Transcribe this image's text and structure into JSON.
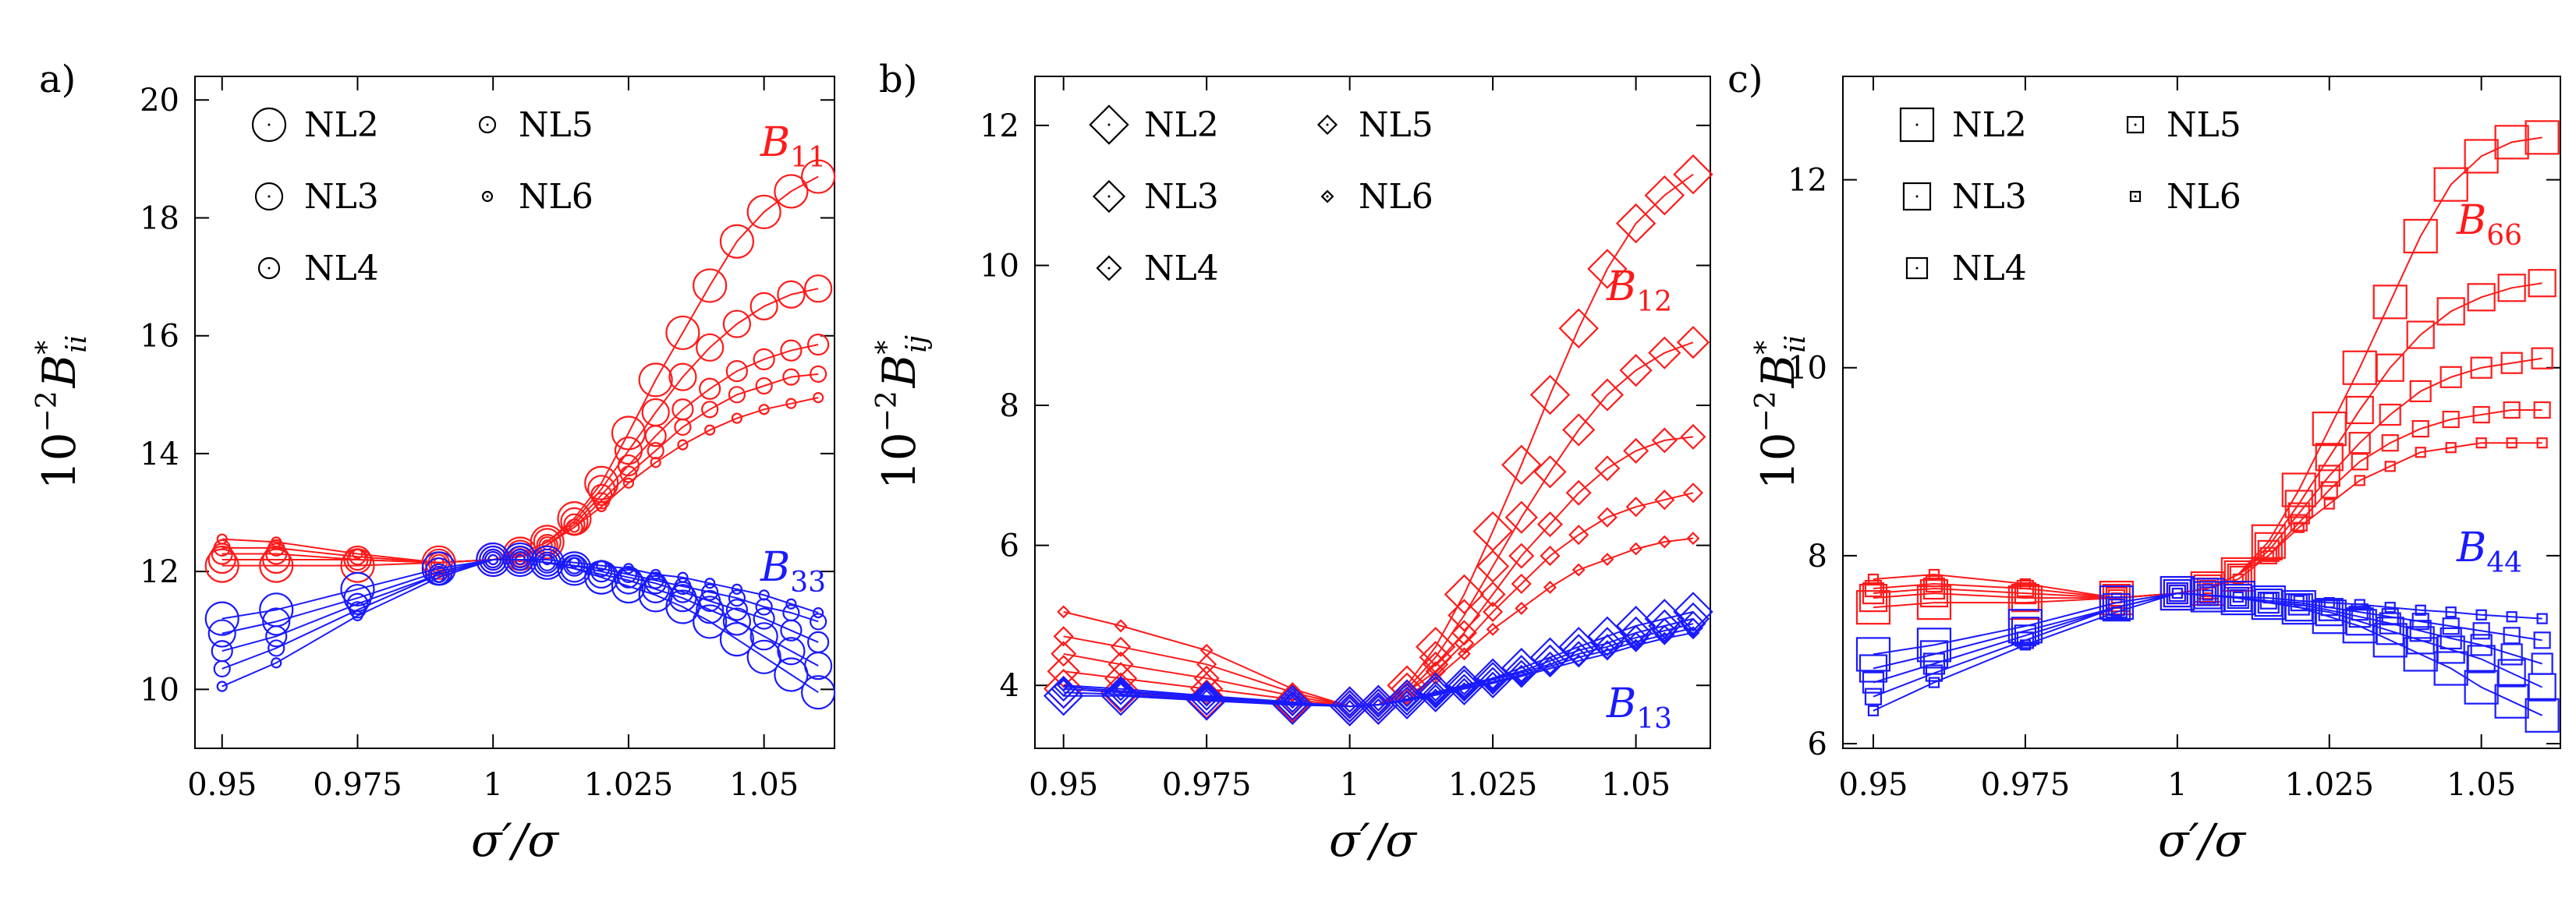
{
  "colors": {
    "red": "#ff1a1a",
    "blue": "#1a1aff",
    "axis": "#000000"
  },
  "chart_data": [
    {
      "type": "line",
      "panel_label": "a)",
      "xlabel_main": "σ′/σ",
      "ylabel": {
        "prefix": "10",
        "exp": "−2",
        "letter": "B",
        "sup": "*",
        "sub": "ii"
      },
      "xlim": [
        0.945,
        1.063
      ],
      "ylim": [
        9.0,
        20.4
      ],
      "xticks": [
        0.95,
        0.975,
        1,
        1.025,
        1.05
      ],
      "xtick_labels": [
        "0.95",
        "0.975",
        "1",
        "1.025",
        "1.05"
      ],
      "yticks": [
        10,
        12,
        14,
        16,
        18,
        20
      ],
      "ytick_labels": [
        "10",
        "12",
        "14",
        "16",
        "18",
        "20"
      ],
      "marker": "circle",
      "x": [
        0.95,
        0.96,
        0.975,
        0.99,
        1.0,
        1.005,
        1.01,
        1.015,
        1.02,
        1.025,
        1.03,
        1.035,
        1.04,
        1.045,
        1.05,
        1.055,
        1.06
      ],
      "legend": [
        "NL2",
        "NL3",
        "NL4",
        "NL5",
        "NL6"
      ],
      "annotations": [
        {
          "base": "B",
          "sub": "11",
          "color": "red"
        },
        {
          "base": "B",
          "sub": "33",
          "color": "blue"
        }
      ],
      "series": [
        {
          "name": "B11 NL2",
          "color": "red",
          "size": 5,
          "values": [
            12.1,
            12.1,
            12.1,
            12.15,
            12.2,
            12.3,
            12.5,
            12.9,
            13.5,
            14.35,
            15.25,
            16.05,
            16.85,
            17.6,
            18.1,
            18.45,
            18.7
          ]
        },
        {
          "name": "B11 NL3",
          "color": "red",
          "size": 4,
          "values": [
            12.2,
            12.2,
            12.2,
            12.15,
            12.2,
            12.3,
            12.5,
            12.85,
            13.4,
            14.05,
            14.7,
            15.3,
            15.8,
            16.2,
            16.5,
            16.7,
            16.8
          ]
        },
        {
          "name": "B11 NL4",
          "color": "red",
          "size": 3,
          "values": [
            12.3,
            12.3,
            12.2,
            12.15,
            12.2,
            12.25,
            12.45,
            12.8,
            13.3,
            13.8,
            14.3,
            14.75,
            15.1,
            15.4,
            15.6,
            15.75,
            15.85
          ]
        },
        {
          "name": "B11 NL5",
          "color": "red",
          "size": 2,
          "values": [
            12.4,
            12.4,
            12.25,
            12.15,
            12.2,
            12.25,
            12.45,
            12.75,
            13.2,
            13.65,
            14.05,
            14.45,
            14.75,
            15.0,
            15.15,
            15.3,
            15.35
          ]
        },
        {
          "name": "B11 NL6",
          "color": "red",
          "size": 1,
          "values": [
            12.55,
            12.5,
            12.3,
            12.15,
            12.2,
            12.25,
            12.45,
            12.75,
            13.1,
            13.5,
            13.85,
            14.15,
            14.4,
            14.6,
            14.75,
            14.85,
            14.95
          ]
        },
        {
          "name": "B33 NL2",
          "color": "blue",
          "size": 5,
          "values": [
            11.2,
            11.35,
            11.7,
            12.05,
            12.2,
            12.2,
            12.15,
            12.05,
            11.9,
            11.75,
            11.6,
            11.4,
            11.15,
            10.85,
            10.55,
            10.25,
            9.95
          ]
        },
        {
          "name": "B33 NL3",
          "color": "blue",
          "size": 4,
          "values": [
            10.95,
            11.15,
            11.55,
            12.0,
            12.2,
            12.2,
            12.15,
            12.05,
            11.95,
            11.85,
            11.7,
            11.55,
            11.35,
            11.15,
            10.9,
            10.65,
            10.4
          ]
        },
        {
          "name": "B33 NL4",
          "color": "blue",
          "size": 3,
          "values": [
            10.65,
            10.9,
            11.45,
            11.95,
            12.2,
            12.2,
            12.15,
            12.1,
            12.0,
            11.9,
            11.8,
            11.65,
            11.5,
            11.35,
            11.2,
            11.0,
            10.8
          ]
        },
        {
          "name": "B33 NL5",
          "color": "blue",
          "size": 2,
          "values": [
            10.35,
            10.7,
            11.35,
            11.95,
            12.2,
            12.2,
            12.15,
            12.1,
            12.05,
            11.95,
            11.85,
            11.75,
            11.65,
            11.55,
            11.4,
            11.3,
            11.15
          ]
        },
        {
          "name": "B33 NL6",
          "color": "blue",
          "size": 1,
          "values": [
            10.05,
            10.45,
            11.25,
            11.9,
            12.2,
            12.2,
            12.2,
            12.15,
            12.1,
            12.05,
            11.95,
            11.9,
            11.8,
            11.7,
            11.6,
            11.45,
            11.3
          ]
        }
      ]
    },
    {
      "type": "line",
      "panel_label": "b)",
      "xlabel_main": "σ′/σ",
      "ylabel": {
        "prefix": "10",
        "exp": "−2",
        "letter": "B",
        "sup": "*",
        "sub": "ij"
      },
      "xlim": [
        0.945,
        1.063
      ],
      "ylim": [
        3.1,
        12.7
      ],
      "xticks": [
        0.95,
        0.975,
        1,
        1.025,
        1.05
      ],
      "xtick_labels": [
        "0.95",
        "0.975",
        "1",
        "1.025",
        "1.05"
      ],
      "yticks": [
        4,
        6,
        8,
        10,
        12
      ],
      "ytick_labels": [
        "4",
        "6",
        "8",
        "10",
        "12"
      ],
      "marker": "diamond",
      "x": [
        0.95,
        0.96,
        0.975,
        0.99,
        1.0,
        1.005,
        1.01,
        1.015,
        1.02,
        1.025,
        1.03,
        1.035,
        1.04,
        1.045,
        1.05,
        1.055,
        1.06
      ],
      "legend": [
        "NL2",
        "NL3",
        "NL4",
        "NL5",
        "NL6"
      ],
      "annotations": [
        {
          "base": "B",
          "sub": "12",
          "color": "red"
        },
        {
          "base": "B",
          "sub": "13",
          "color": "blue"
        }
      ],
      "series": [
        {
          "name": "B12 NL2",
          "color": "red",
          "size": 5,
          "values": [
            3.95,
            3.9,
            3.8,
            3.75,
            3.7,
            3.72,
            4.0,
            4.55,
            5.3,
            6.2,
            7.15,
            8.15,
            9.1,
            9.95,
            10.6,
            11.0,
            11.3
          ]
        },
        {
          "name": "B12 NL3",
          "color": "red",
          "size": 4,
          "values": [
            4.2,
            4.1,
            3.95,
            3.8,
            3.7,
            3.72,
            3.95,
            4.4,
            5.0,
            5.7,
            6.4,
            7.05,
            7.65,
            8.15,
            8.5,
            8.75,
            8.9
          ]
        },
        {
          "name": "B12 NL4",
          "color": "red",
          "size": 3,
          "values": [
            4.45,
            4.3,
            4.1,
            3.85,
            3.7,
            3.72,
            3.9,
            4.3,
            4.75,
            5.3,
            5.85,
            6.3,
            6.75,
            7.1,
            7.35,
            7.5,
            7.55
          ]
        },
        {
          "name": "B12 NL5",
          "color": "red",
          "size": 2,
          "values": [
            4.7,
            4.55,
            4.3,
            3.9,
            3.7,
            3.72,
            3.9,
            4.2,
            4.6,
            5.05,
            5.45,
            5.85,
            6.15,
            6.4,
            6.55,
            6.65,
            6.75
          ]
        },
        {
          "name": "B12 NL6",
          "color": "red",
          "size": 1,
          "values": [
            5.05,
            4.85,
            4.5,
            3.95,
            3.7,
            3.72,
            3.85,
            4.1,
            4.45,
            4.8,
            5.1,
            5.4,
            5.65,
            5.8,
            5.95,
            6.05,
            6.1
          ]
        },
        {
          "name": "B13 NL2",
          "color": "blue",
          "size": 5,
          "values": [
            3.85,
            3.85,
            3.78,
            3.72,
            3.7,
            3.72,
            3.8,
            3.9,
            4.0,
            4.1,
            4.25,
            4.4,
            4.55,
            4.7,
            4.85,
            4.95,
            5.05
          ]
        },
        {
          "name": "B13 NL3",
          "color": "blue",
          "size": 4,
          "values": [
            3.9,
            3.87,
            3.8,
            3.73,
            3.7,
            3.72,
            3.8,
            3.9,
            4.0,
            4.1,
            4.2,
            4.35,
            4.5,
            4.6,
            4.75,
            4.85,
            4.95
          ]
        },
        {
          "name": "B13 NL4",
          "color": "blue",
          "size": 3,
          "values": [
            3.95,
            3.9,
            3.82,
            3.74,
            3.7,
            3.72,
            3.8,
            3.88,
            3.98,
            4.08,
            4.18,
            4.3,
            4.45,
            4.55,
            4.68,
            4.78,
            4.88
          ]
        },
        {
          "name": "B13 NL5",
          "color": "blue",
          "size": 2,
          "values": [
            3.98,
            3.92,
            3.84,
            3.75,
            3.7,
            3.72,
            3.78,
            3.87,
            3.96,
            4.05,
            4.15,
            4.27,
            4.4,
            4.5,
            4.62,
            4.72,
            4.82
          ]
        },
        {
          "name": "B13 NL6",
          "color": "blue",
          "size": 1,
          "values": [
            4.0,
            3.95,
            3.85,
            3.76,
            3.7,
            3.72,
            3.78,
            3.86,
            3.95,
            4.03,
            4.13,
            4.24,
            4.35,
            4.45,
            4.57,
            4.67,
            4.75
          ]
        }
      ]
    },
    {
      "type": "line",
      "panel_label": "c)",
      "xlabel_main": "σ′/σ",
      "ylabel": {
        "prefix": "10",
        "exp": "−2",
        "letter": "B",
        "sup": "*",
        "sub": "ii"
      },
      "xlim": [
        0.945,
        1.063
      ],
      "ylim": [
        5.95,
        13.1
      ],
      "xticks": [
        0.95,
        0.975,
        1,
        1.025,
        1.05
      ],
      "xtick_labels": [
        "0.95",
        "0.975",
        "1",
        "1.025",
        "1.05"
      ],
      "yticks": [
        6,
        8,
        10,
        12
      ],
      "ytick_labels": [
        "6",
        "8",
        "10",
        "12"
      ],
      "marker": "square",
      "x": [
        0.95,
        0.96,
        0.975,
        0.99,
        1.0,
        1.005,
        1.01,
        1.015,
        1.02,
        1.025,
        1.03,
        1.035,
        1.04,
        1.045,
        1.05,
        1.055,
        1.06
      ],
      "legend": [
        "NL2",
        "NL3",
        "NL4",
        "NL5",
        "NL6"
      ],
      "annotations": [
        {
          "base": "B",
          "sub": "66",
          "color": "red"
        },
        {
          "base": "B",
          "sub": "44",
          "color": "blue"
        }
      ],
      "series": [
        {
          "name": "B66 NL2",
          "color": "red",
          "size": 5,
          "values": [
            7.45,
            7.5,
            7.5,
            7.55,
            7.6,
            7.65,
            7.8,
            8.15,
            8.7,
            9.35,
            10.0,
            10.7,
            11.4,
            11.95,
            12.25,
            12.4,
            12.45
          ]
        },
        {
          "name": "B66 NL3",
          "color": "red",
          "size": 4,
          "values": [
            7.55,
            7.6,
            7.55,
            7.55,
            7.6,
            7.65,
            7.8,
            8.1,
            8.55,
            9.05,
            9.55,
            10.0,
            10.35,
            10.6,
            10.75,
            10.85,
            10.9
          ]
        },
        {
          "name": "B66 NL4",
          "color": "red",
          "size": 3,
          "values": [
            7.6,
            7.65,
            7.6,
            7.55,
            7.6,
            7.65,
            7.8,
            8.05,
            8.45,
            8.85,
            9.2,
            9.5,
            9.75,
            9.9,
            10.0,
            10.05,
            10.1
          ]
        },
        {
          "name": "B66 NL5",
          "color": "red",
          "size": 2,
          "values": [
            7.65,
            7.7,
            7.65,
            7.55,
            7.6,
            7.65,
            7.8,
            8.0,
            8.35,
            8.7,
            9.0,
            9.2,
            9.35,
            9.45,
            9.5,
            9.55,
            9.55
          ]
        },
        {
          "name": "B66 NL6",
          "color": "red",
          "size": 1,
          "values": [
            7.75,
            7.8,
            7.7,
            7.55,
            7.6,
            7.65,
            7.75,
            8.0,
            8.3,
            8.55,
            8.8,
            8.95,
            9.1,
            9.15,
            9.2,
            9.2,
            9.2
          ]
        },
        {
          "name": "B44 NL2",
          "color": "blue",
          "size": 5,
          "values": [
            6.95,
            7.05,
            7.25,
            7.5,
            7.6,
            7.58,
            7.55,
            7.5,
            7.45,
            7.35,
            7.25,
            7.1,
            6.95,
            6.8,
            6.6,
            6.45,
            6.3
          ]
        },
        {
          "name": "B44 NL3",
          "color": "blue",
          "size": 4,
          "values": [
            6.8,
            6.95,
            7.2,
            7.45,
            7.6,
            7.58,
            7.55,
            7.5,
            7.45,
            7.4,
            7.3,
            7.2,
            7.1,
            7.0,
            6.9,
            6.75,
            6.6
          ]
        },
        {
          "name": "B44 NL4",
          "color": "blue",
          "size": 3,
          "values": [
            6.65,
            6.85,
            7.15,
            7.45,
            7.6,
            7.58,
            7.55,
            7.5,
            7.48,
            7.42,
            7.35,
            7.28,
            7.2,
            7.12,
            7.05,
            6.95,
            6.85
          ]
        },
        {
          "name": "B44 NL5",
          "color": "blue",
          "size": 2,
          "values": [
            6.5,
            6.75,
            7.1,
            7.45,
            7.6,
            7.58,
            7.55,
            7.52,
            7.5,
            7.45,
            7.4,
            7.35,
            7.3,
            7.25,
            7.2,
            7.15,
            7.1
          ]
        },
        {
          "name": "B44 NL6",
          "color": "blue",
          "size": 1,
          "values": [
            6.35,
            6.65,
            7.05,
            7.4,
            7.6,
            7.58,
            7.56,
            7.55,
            7.52,
            7.5,
            7.48,
            7.45,
            7.42,
            7.4,
            7.37,
            7.35,
            7.33
          ]
        }
      ]
    }
  ]
}
